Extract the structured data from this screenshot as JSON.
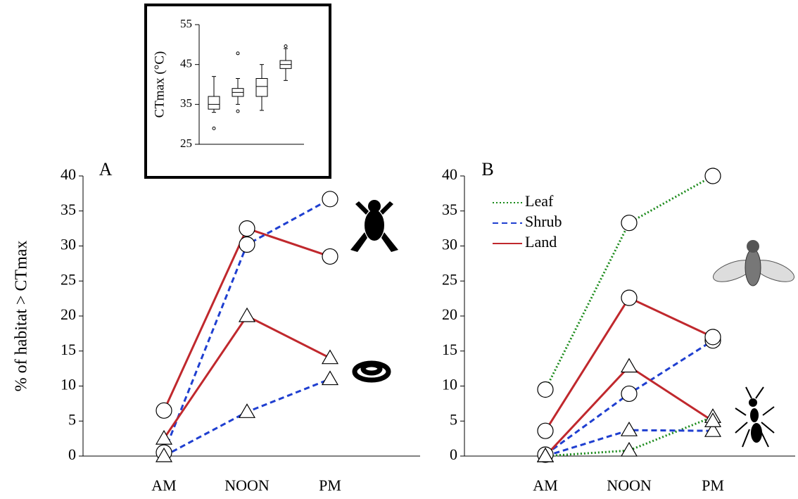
{
  "chart_data": [
    {
      "type": "line",
      "label": "A",
      "ylabel": "% of habitat > CTmax",
      "categories": [
        "AM",
        "NOON",
        "PM"
      ],
      "ylim": [
        0,
        40
      ],
      "yticks": [
        0,
        5,
        10,
        15,
        20,
        25,
        30,
        35,
        40
      ],
      "legend": false,
      "series": [
        {
          "name": "Land",
          "color": "#c0282d",
          "dash": "solid",
          "marker": "circle",
          "values": [
            6.5,
            32.5,
            28.5
          ]
        },
        {
          "name": "Shrub",
          "color": "#1f3fd0",
          "dash": "dashed",
          "marker": "circle",
          "values": [
            0.5,
            30.2,
            36.7
          ]
        },
        {
          "name": "Land",
          "color": "#c0282d",
          "dash": "solid",
          "marker": "triangle",
          "values": [
            2.5,
            20,
            14
          ]
        },
        {
          "name": "Shrub",
          "color": "#1f3fd0",
          "dash": "dashed",
          "marker": "triangle",
          "values": [
            0,
            6.3,
            11
          ]
        }
      ]
    },
    {
      "type": "line",
      "label": "B",
      "categories": [
        "AM",
        "NOON",
        "PM"
      ],
      "ylim": [
        0,
        40
      ],
      "yticks": [
        0,
        5,
        10,
        15,
        20,
        25,
        30,
        35,
        40
      ],
      "legend": true,
      "legend_position": "upper left",
      "series": [
        {
          "name": "Leaf",
          "color": "#1a8a1a",
          "dash": "dotted",
          "marker": "circle",
          "values": [
            9.5,
            33.3,
            40
          ]
        },
        {
          "name": "Shrub",
          "color": "#1f3fd0",
          "dash": "dashed",
          "marker": "circle",
          "values": [
            0.2,
            8.9,
            16.5
          ]
        },
        {
          "name": "Land",
          "color": "#c0282d",
          "dash": "solid",
          "marker": "circle",
          "values": [
            3.6,
            22.6,
            17
          ]
        },
        {
          "name": "Leaf",
          "color": "#1a8a1a",
          "dash": "dotted",
          "marker": "triangle",
          "values": [
            0,
            0.8,
            5.6
          ]
        },
        {
          "name": "Shrub",
          "color": "#1f3fd0",
          "dash": "dashed",
          "marker": "triangle",
          "values": [
            0,
            3.7,
            3.6
          ]
        },
        {
          "name": "Land",
          "color": "#c0282d",
          "dash": "solid",
          "marker": "triangle",
          "values": [
            0,
            12.8,
            5
          ]
        }
      ]
    },
    {
      "type": "box",
      "ylabel": "CTmax (°C)",
      "categories": [
        null,
        null,
        null,
        null
      ],
      "ylim": [
        25,
        55
      ],
      "yticks": [
        25,
        35,
        45,
        55
      ],
      "boxes": [
        {
          "low": 33,
          "q1": 33.8,
          "median": 35,
          "q3": 37,
          "high": 42,
          "outliers": [
            29
          ]
        },
        {
          "low": 35,
          "q1": 37,
          "median": 38,
          "q3": 39,
          "high": 41.5,
          "outliers": [
            33.3,
            47.8
          ]
        },
        {
          "low": 33.5,
          "q1": 37,
          "median": 39.5,
          "q3": 41.5,
          "high": 45,
          "outliers": []
        },
        {
          "low": 41,
          "q1": 44,
          "median": 45,
          "q3": 46,
          "high": 49,
          "outliers": [
            49.6
          ]
        }
      ]
    }
  ]
}
